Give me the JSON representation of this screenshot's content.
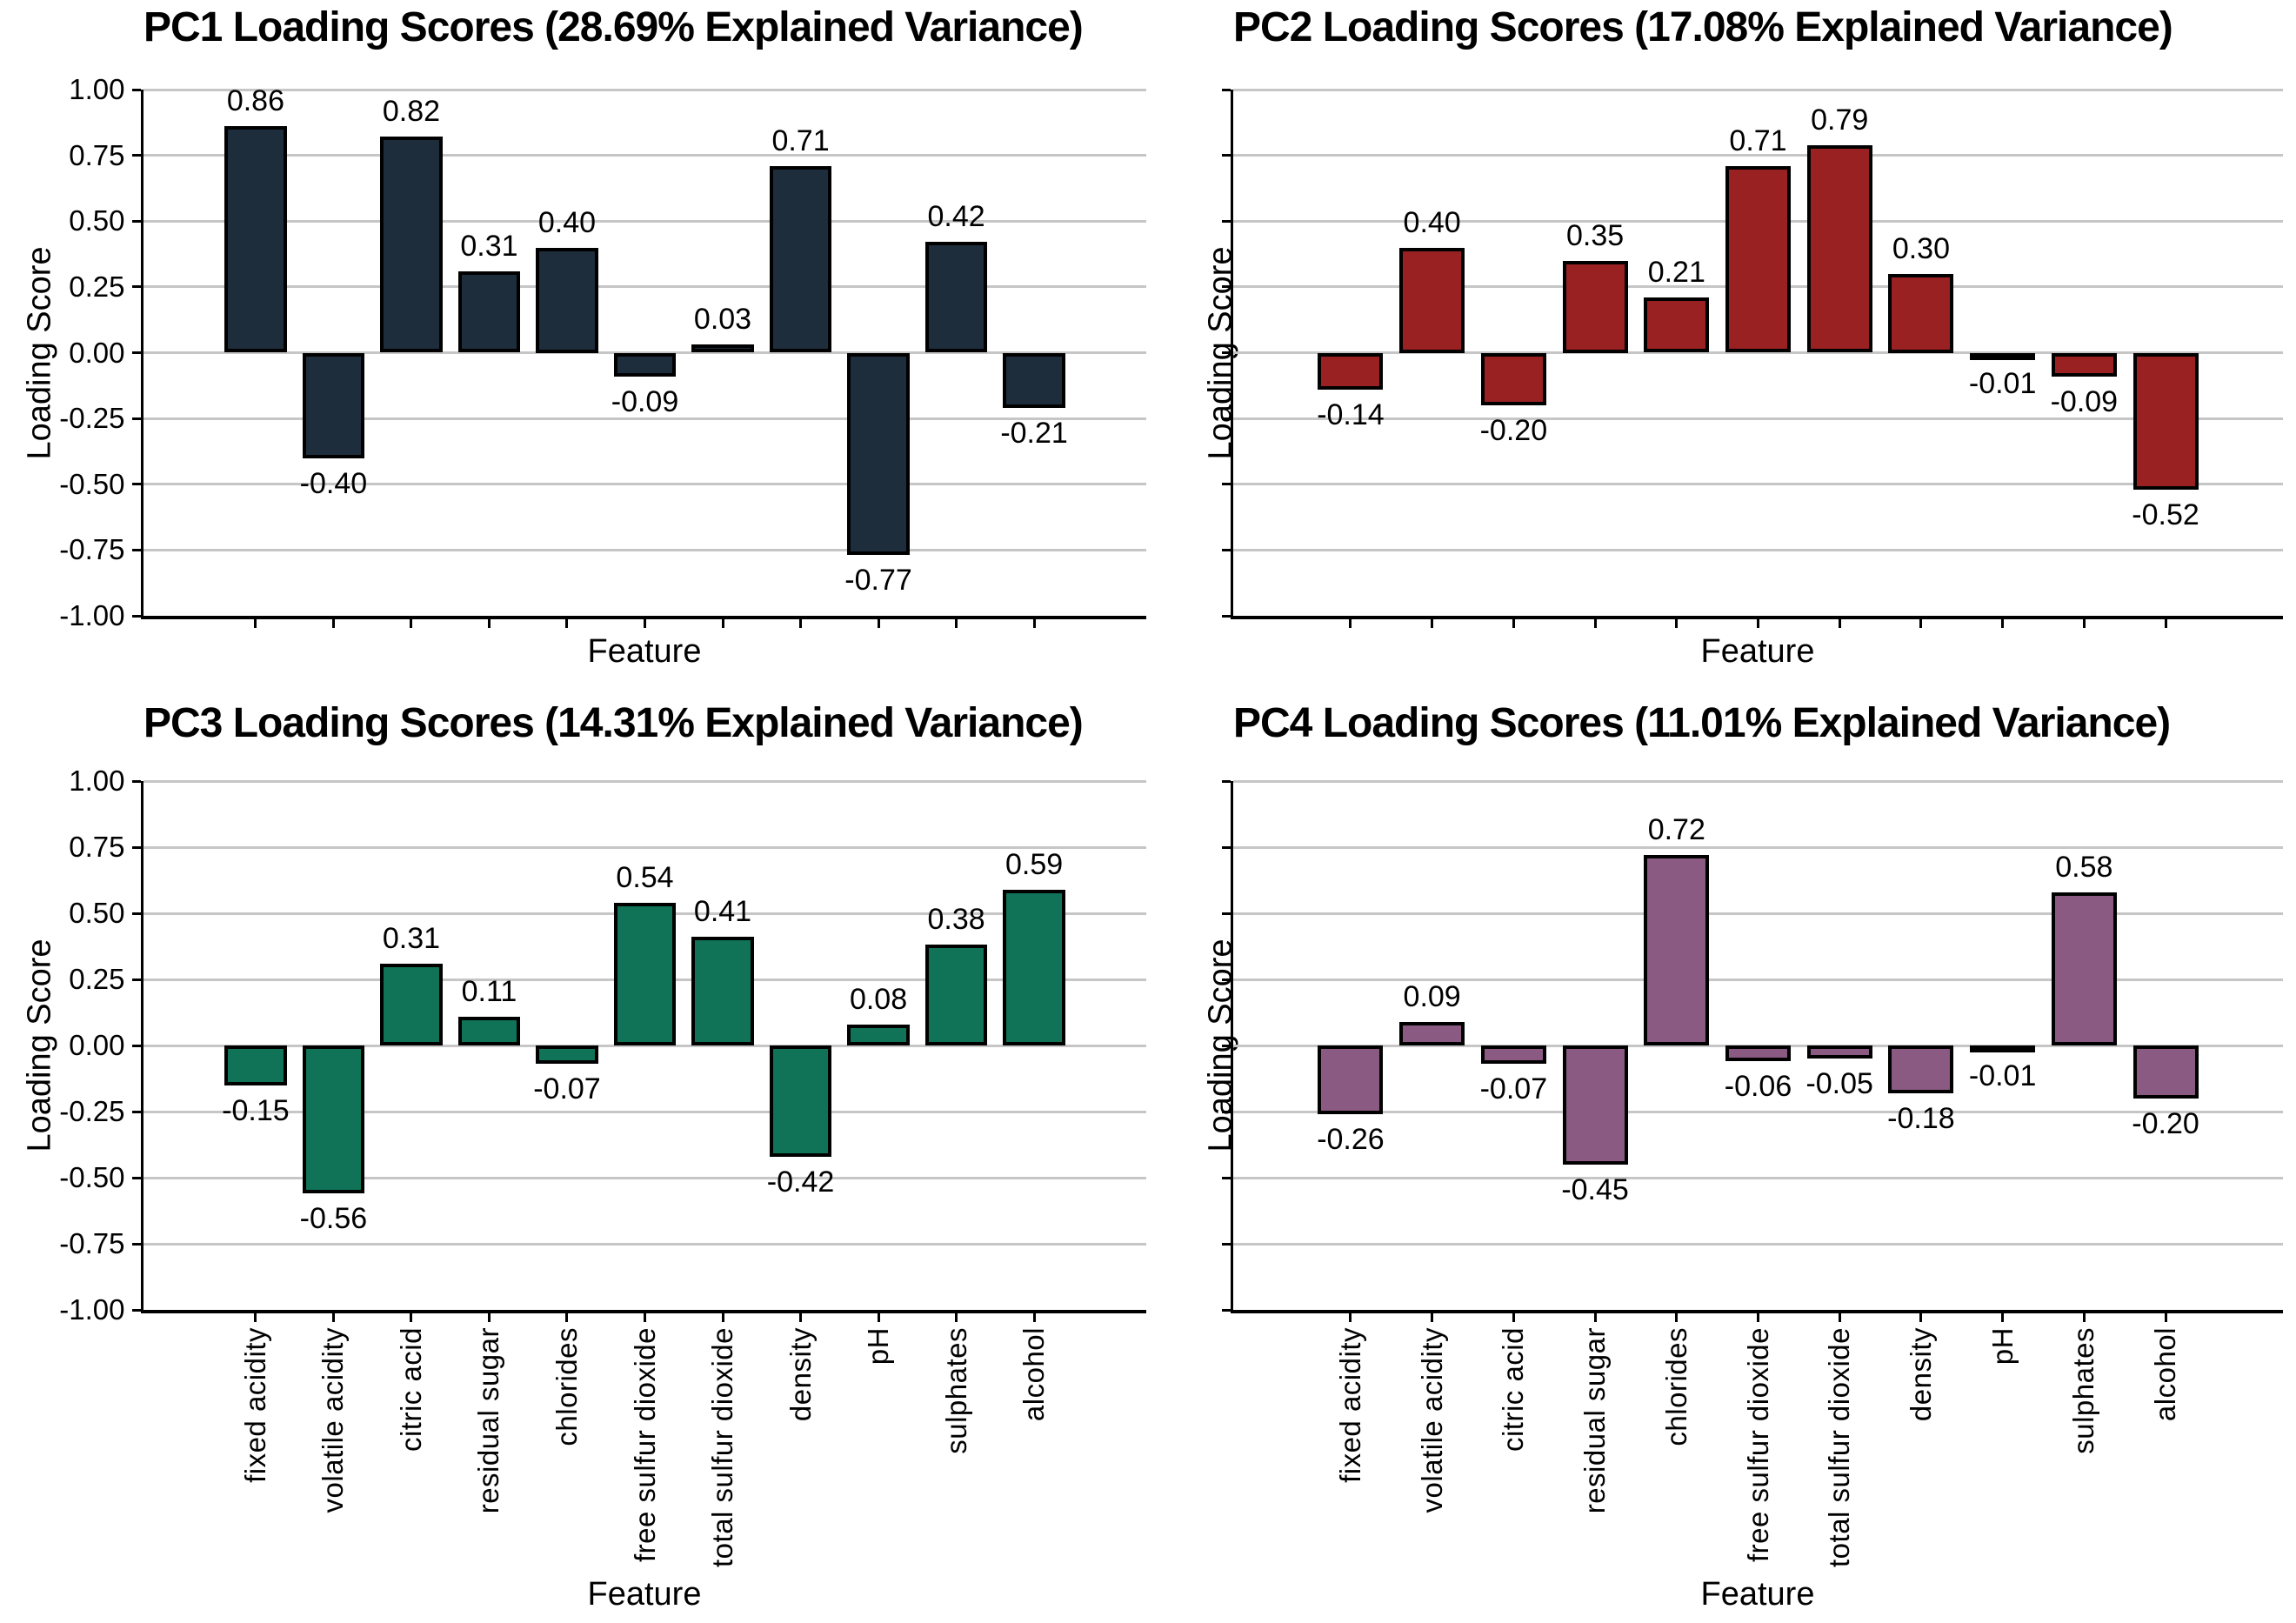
{
  "figure": {
    "background": "#ffffff",
    "grid_color": "#c6c6c6",
    "spine_color": "#000000",
    "text_color": "#000000"
  },
  "axis": {
    "xlabel": "Feature",
    "ylabel": "Loading Score",
    "ylim": [
      -1.0,
      1.0
    ],
    "yticks": [
      1.0,
      0.75,
      0.5,
      0.25,
      0.0,
      -0.25,
      -0.5,
      -0.75,
      -1.0
    ]
  },
  "categories": [
    "fixed acidity",
    "volatile acidity",
    "citric acid",
    "residual sugar",
    "chlorides",
    "free sulfur dioxide",
    "total sulfur dioxide",
    "density",
    "pH",
    "sulphates",
    "alcohol"
  ],
  "chart_data": [
    {
      "type": "bar",
      "title": "PC1 Loading Scores (28.69% Explained Variance)",
      "color": "#1e2d3c",
      "categories": [
        "fixed acidity",
        "volatile acidity",
        "citric acid",
        "residual sugar",
        "chlorides",
        "free sulfur dioxide",
        "total sulfur dioxide",
        "density",
        "pH",
        "sulphates",
        "alcohol"
      ],
      "values": [
        0.86,
        -0.4,
        0.82,
        0.31,
        0.4,
        -0.09,
        0.03,
        0.71,
        -0.77,
        0.42,
        -0.21
      ],
      "bar_labels": [
        "0.86",
        "-0.40",
        "0.82",
        "0.31",
        "0.40",
        "-0.09",
        "0.03",
        "0.71",
        "-0.77",
        "0.42",
        "-0.21"
      ],
      "xlabel": "Feature",
      "ylabel": "Loading Score",
      "ylim": [
        -1.0,
        1.0
      ],
      "grid": true,
      "y_tick_labels_visible": true,
      "x_tick_labels_visible": false
    },
    {
      "type": "bar",
      "title": "PC2 Loading Scores (17.08% Explained Variance)",
      "color": "#992121",
      "categories": [
        "fixed acidity",
        "volatile acidity",
        "citric acid",
        "residual sugar",
        "chlorides",
        "free sulfur dioxide",
        "total sulfur dioxide",
        "density",
        "pH",
        "sulphates",
        "alcohol"
      ],
      "values": [
        -0.14,
        0.4,
        -0.2,
        0.35,
        0.21,
        0.71,
        0.79,
        0.3,
        -0.01,
        -0.09,
        -0.52
      ],
      "bar_labels": [
        "-0.14",
        "0.40",
        "-0.20",
        "0.35",
        "0.21",
        "0.71",
        "0.79",
        "0.30",
        "-0.01",
        "-0.09",
        "-0.52"
      ],
      "xlabel": "Feature",
      "ylabel": "Loading Score",
      "ylim": [
        -1.0,
        1.0
      ],
      "grid": true,
      "y_tick_labels_visible": false,
      "x_tick_labels_visible": false
    },
    {
      "type": "bar",
      "title": "PC3 Loading Scores (14.31% Explained Variance)",
      "color": "#107256",
      "categories": [
        "fixed acidity",
        "volatile acidity",
        "citric acid",
        "residual sugar",
        "chlorides",
        "free sulfur dioxide",
        "total sulfur dioxide",
        "density",
        "pH",
        "sulphates",
        "alcohol"
      ],
      "values": [
        -0.15,
        -0.56,
        0.31,
        0.11,
        -0.07,
        0.54,
        0.41,
        -0.42,
        0.08,
        0.38,
        0.59
      ],
      "bar_labels": [
        "-0.15",
        "-0.56",
        "0.31",
        "0.11",
        "-0.07",
        "0.54",
        "0.41",
        "-0.42",
        "0.08",
        "0.38",
        "0.59"
      ],
      "xlabel": "Feature",
      "ylabel": "Loading Score",
      "ylim": [
        -1.0,
        1.0
      ],
      "grid": true,
      "y_tick_labels_visible": true,
      "x_tick_labels_visible": true
    },
    {
      "type": "bar",
      "title": "PC4 Loading Scores (11.01% Explained Variance)",
      "color": "#8b5a82",
      "categories": [
        "fixed acidity",
        "volatile acidity",
        "citric acid",
        "residual sugar",
        "chlorides",
        "free sulfur dioxide",
        "total sulfur dioxide",
        "density",
        "pH",
        "sulphates",
        "alcohol"
      ],
      "values": [
        -0.26,
        0.09,
        -0.07,
        -0.45,
        0.72,
        -0.06,
        -0.05,
        -0.18,
        -0.01,
        0.58,
        -0.2
      ],
      "bar_labels": [
        "-0.26",
        "0.09",
        "-0.07",
        "-0.45",
        "0.72",
        "-0.06",
        "-0.05",
        "-0.18",
        "-0.01",
        "0.58",
        "-0.20"
      ],
      "xlabel": "Feature",
      "ylabel": "Loading Score",
      "ylim": [
        -1.0,
        1.0
      ],
      "grid": true,
      "y_tick_labels_visible": false,
      "x_tick_labels_visible": true
    }
  ]
}
